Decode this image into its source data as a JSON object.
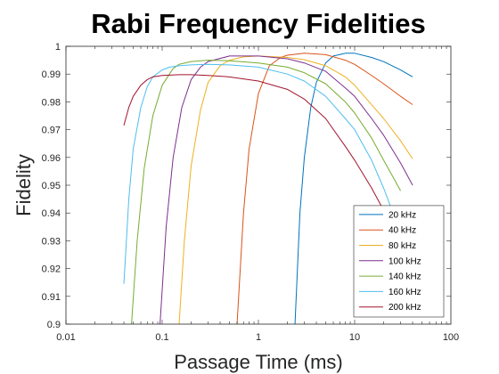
{
  "chart_data": {
    "type": "line",
    "title": "Rabi Frequency Fidelities",
    "xlabel": "Passage Time (ms)",
    "ylabel": "Fidelity",
    "xscale": "log",
    "xlim": [
      0.01,
      100
    ],
    "ylim": [
      0.9,
      1.0
    ],
    "xticks": [
      0.01,
      0.1,
      1,
      10,
      100
    ],
    "xtick_labels": [
      "0.01",
      "0.1",
      "1",
      "10",
      "100"
    ],
    "yticks": [
      0.9,
      0.91,
      0.92,
      0.93,
      0.94,
      0.95,
      0.96,
      0.97,
      0.98,
      0.99,
      1.0
    ],
    "ytick_labels": [
      "0.9",
      "0.91",
      "0.92",
      "0.93",
      "0.94",
      "0.95",
      "0.96",
      "0.97",
      "0.98",
      "0.99",
      "1"
    ],
    "grid": false,
    "legend_position": "bottom-right",
    "series": [
      {
        "name": "20 kHz",
        "color": "#0072BD",
        "x": [
          2.4,
          2.7,
          3.0,
          3.5,
          4.0,
          5.0,
          6.0,
          8.0,
          10.0,
          15.0,
          20.0,
          30.0,
          40.0
        ],
        "y": [
          0.9,
          0.94,
          0.96,
          0.978,
          0.987,
          0.994,
          0.9965,
          0.9975,
          0.9975,
          0.996,
          0.9945,
          0.9915,
          0.989
        ]
      },
      {
        "name": "40 kHz",
        "color": "#D95319",
        "x": [
          0.6,
          0.7,
          0.8,
          1.0,
          1.3,
          1.7,
          2.0,
          3.0,
          5.0,
          8.0,
          10.0,
          15.0,
          20.0,
          30.0,
          40.0
        ],
        "y": [
          0.9,
          0.94,
          0.963,
          0.983,
          0.993,
          0.996,
          0.9968,
          0.9975,
          0.997,
          0.995,
          0.9935,
          0.9895,
          0.9865,
          0.982,
          0.979
        ]
      },
      {
        "name": "80 kHz",
        "color": "#EDB120",
        "x": [
          0.15,
          0.17,
          0.2,
          0.25,
          0.3,
          0.4,
          0.5,
          0.7,
          1.0,
          2.0,
          3.0,
          5.0,
          8.0,
          10.0,
          15.0,
          20.0,
          30.0,
          40.0
        ],
        "y": [
          0.9,
          0.93,
          0.957,
          0.977,
          0.987,
          0.993,
          0.995,
          0.9962,
          0.9965,
          0.996,
          0.9952,
          0.993,
          0.989,
          0.986,
          0.979,
          0.974,
          0.966,
          0.9595
        ]
      },
      {
        "name": "100 kHz",
        "color": "#7E2F8E",
        "x": [
          0.095,
          0.11,
          0.13,
          0.16,
          0.2,
          0.25,
          0.3,
          0.5,
          1.0,
          2.0,
          3.0,
          5.0,
          8.0,
          10.0,
          15.0,
          20.0,
          30.0,
          40.0
        ],
        "y": [
          0.9,
          0.935,
          0.96,
          0.978,
          0.988,
          0.9925,
          0.9945,
          0.9965,
          0.9965,
          0.9955,
          0.994,
          0.991,
          0.985,
          0.982,
          0.974,
          0.968,
          0.958,
          0.95
        ]
      },
      {
        "name": "140 kHz",
        "color": "#77AC30",
        "x": [
          0.048,
          0.055,
          0.065,
          0.08,
          0.1,
          0.13,
          0.15,
          0.2,
          0.3,
          0.5,
          1.0,
          2.0,
          3.0,
          5.0,
          8.0,
          10.0,
          15.0,
          20.0,
          25.0,
          30.0
        ],
        "y": [
          0.9,
          0.93,
          0.956,
          0.975,
          0.986,
          0.992,
          0.9935,
          0.9945,
          0.995,
          0.9948,
          0.994,
          0.9925,
          0.9905,
          0.9865,
          0.98,
          0.976,
          0.967,
          0.959,
          0.953,
          0.948
        ]
      },
      {
        "name": "160 kHz",
        "color": "#4DBEEE",
        "x": [
          0.04,
          0.045,
          0.05,
          0.06,
          0.07,
          0.08,
          0.1,
          0.12,
          0.15,
          0.2,
          0.3,
          0.5,
          1.0,
          2.0,
          3.0,
          5.0,
          8.0,
          10.0,
          15.0,
          20.0,
          25.0
        ],
        "y": [
          0.9145,
          0.945,
          0.963,
          0.978,
          0.9855,
          0.989,
          0.9915,
          0.9925,
          0.993,
          0.9933,
          0.9935,
          0.9933,
          0.9925,
          0.99,
          0.9875,
          0.982,
          0.974,
          0.97,
          0.959,
          0.949,
          0.94
        ]
      },
      {
        "name": "200 kHz",
        "color": "#A2142F",
        "x": [
          0.04,
          0.045,
          0.05,
          0.06,
          0.07,
          0.08,
          0.1,
          0.15,
          0.2,
          0.3,
          0.5,
          1.0,
          2.0,
          3.0,
          5.0,
          8.0,
          10.0,
          15.0,
          20.0
        ],
        "y": [
          0.9715,
          0.978,
          0.982,
          0.986,
          0.988,
          0.989,
          0.9895,
          0.9898,
          0.9898,
          0.9895,
          0.989,
          0.9875,
          0.9845,
          0.981,
          0.974,
          0.964,
          0.959,
          0.949,
          0.941
        ]
      }
    ]
  }
}
